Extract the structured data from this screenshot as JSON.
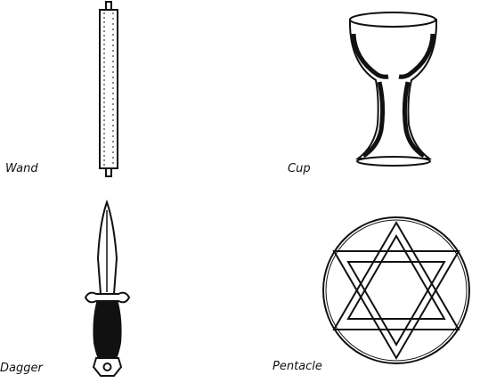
{
  "labels": {
    "wand": "Wand",
    "cup": "Cup",
    "dagger": "Dagger",
    "pentacle": "Pentacle"
  },
  "colors": {
    "ink": "#111111",
    "paper": "#ffffff"
  }
}
